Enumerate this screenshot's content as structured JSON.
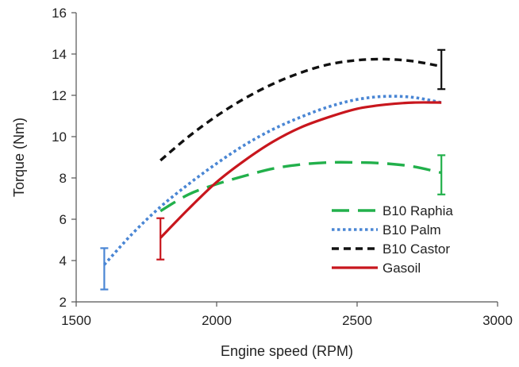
{
  "chart_data": {
    "type": "line",
    "title": "",
    "xlabel": "Engine speed (RPM)",
    "ylabel": "Torque (Nm)",
    "xlim": [
      1500,
      3000
    ],
    "ylim": [
      2,
      16
    ],
    "xticks": [
      1500,
      2000,
      2500,
      3000
    ],
    "yticks": [
      2,
      4,
      6,
      8,
      10,
      12,
      14,
      16
    ],
    "grid": false,
    "legend_position": "lower-right",
    "series": [
      {
        "name": "B10 Raphia",
        "color": "#22b04b",
        "dash": "long-dash",
        "x": [
          1800,
          1900,
          2000,
          2100,
          2200,
          2300,
          2400,
          2500,
          2600,
          2700,
          2800
        ],
        "y": [
          6.4,
          7.2,
          7.7,
          8.1,
          8.45,
          8.65,
          8.75,
          8.75,
          8.7,
          8.55,
          8.25
        ],
        "error_bar": {
          "x": 2800,
          "low": 7.2,
          "high": 9.1
        }
      },
      {
        "name": "B10 Palm",
        "color": "#4a86d4",
        "dash": "dotted",
        "x": [
          1600,
          1700,
          1800,
          1900,
          2000,
          2100,
          2200,
          2300,
          2400,
          2500,
          2600,
          2700,
          2800
        ],
        "y": [
          3.8,
          5.3,
          6.6,
          7.7,
          8.7,
          9.6,
          10.35,
          10.95,
          11.45,
          11.8,
          11.95,
          11.9,
          11.65
        ],
        "error_bar": {
          "x": 1600,
          "low": 2.6,
          "high": 4.6
        }
      },
      {
        "name": "B10 Castor",
        "color": "#111111",
        "dash": "dashed",
        "x": [
          1800,
          1900,
          2000,
          2100,
          2200,
          2300,
          2400,
          2500,
          2600,
          2700,
          2800
        ],
        "y": [
          8.85,
          10.0,
          11.0,
          11.85,
          12.55,
          13.1,
          13.5,
          13.7,
          13.75,
          13.65,
          13.4
        ],
        "error_bar": {
          "x": 2800,
          "low": 12.3,
          "high": 14.2
        }
      },
      {
        "name": "Gasoil",
        "color": "#c8161d",
        "dash": "solid",
        "x": [
          1800,
          1900,
          2000,
          2100,
          2200,
          2300,
          2400,
          2500,
          2600,
          2700,
          2800
        ],
        "y": [
          5.1,
          6.5,
          7.8,
          8.85,
          9.75,
          10.45,
          10.95,
          11.35,
          11.55,
          11.65,
          11.65
        ],
        "error_bar": {
          "x": 1800,
          "low": 4.05,
          "high": 6.05
        }
      }
    ]
  }
}
